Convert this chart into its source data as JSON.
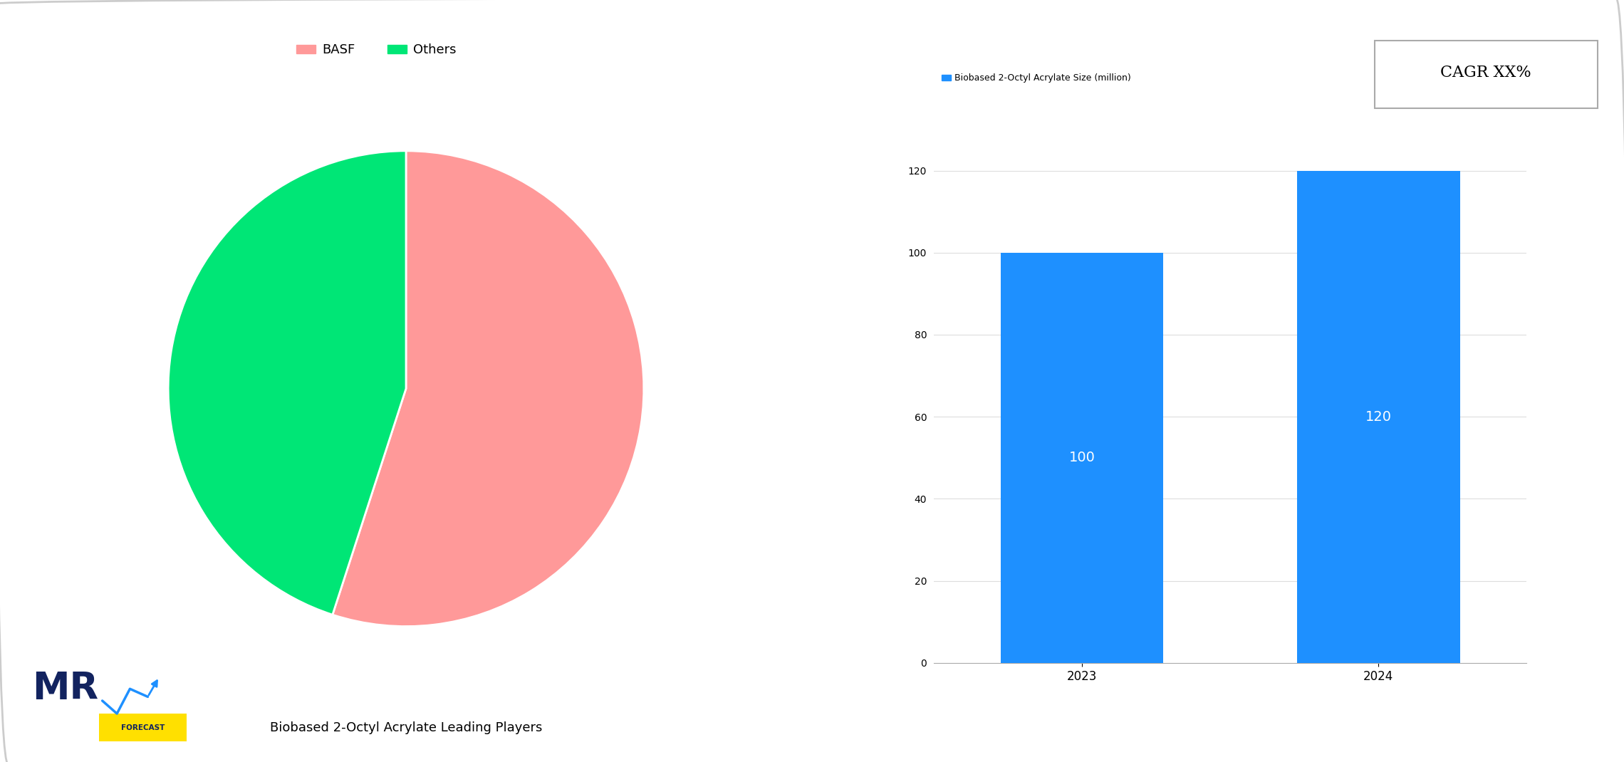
{
  "pie_labels": [
    "BASF",
    "Others"
  ],
  "pie_sizes": [
    55,
    45
  ],
  "pie_colors": [
    "#FF9999",
    "#00E676"
  ],
  "pie_title": "Biobased 2-Octyl Acrylate Leading Players",
  "bar_years": [
    "2023",
    "2024"
  ],
  "bar_values": [
    100,
    120
  ],
  "bar_color": "#1E90FF",
  "bar_legend_label": "Biobased 2-Octyl Acrylate Size (million)",
  "bar_ylim": [
    0,
    130
  ],
  "bar_yticks": [
    0,
    20,
    40,
    60,
    80,
    100,
    120
  ],
  "cagr_text": "CAGR XX%",
  "background_color": "#FFFFFF",
  "border_color": "#CCCCCC",
  "text_color_white": "#FFFFFF",
  "bar_label_fontsize": 14,
  "pie_legend_fontsize": 13,
  "pie_title_fontsize": 13,
  "bar_legend_fontsize": 9,
  "cagr_fontsize": 16
}
